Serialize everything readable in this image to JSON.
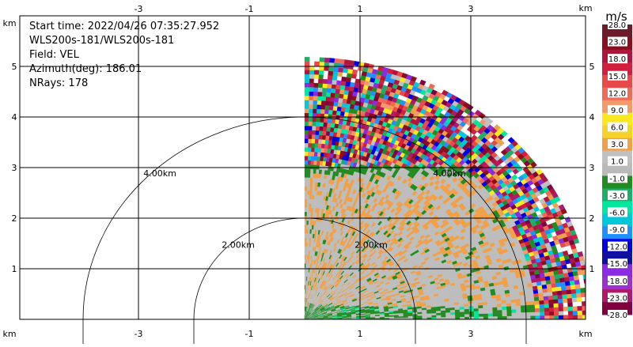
{
  "info": {
    "start_time": "Start time: 2022/04/26 07:35:27.952",
    "instrument": "WLS200s-181/WLS200s-181",
    "field": "Field: VEL",
    "azimuth": "Azimuth(deg): 186.01",
    "nrays": "NRays: 178"
  },
  "chart_data": {
    "type": "heatmap",
    "subtype": "radar-ppi-sector",
    "x_unit": "km",
    "y_unit": "km",
    "xlim": [
      -4.0,
      4.2
    ],
    "ylim": [
      0,
      5.6
    ],
    "x_ticks": [
      -3,
      -1,
      1,
      3
    ],
    "y_ticks": [
      1,
      2,
      3,
      4,
      5
    ],
    "range_rings": [
      {
        "radius_km": 2.0,
        "label": "2.00km"
      },
      {
        "radius_km": 4.0,
        "label": "4.00km"
      }
    ],
    "sector_deg": [
      0,
      90
    ],
    "max_range_km": 5.1,
    "grid": true,
    "colorbar": {
      "unit": "m/s",
      "labels": [
        "28.0",
        "23.0",
        "18.0",
        "15.0",
        "12.0",
        "9.0",
        "6.0",
        "3.0",
        "1.0",
        "-1.0",
        "-3.0",
        "-6.0",
        "-9.0",
        "-12.0",
        "-15.0",
        "-18.0",
        "-23.0",
        "-28.0"
      ],
      "colors": [
        "#6b1b2a",
        "#8c0d1e",
        "#b0163c",
        "#d11f3c",
        "#e84a4a",
        "#f06a5a",
        "#f49a6a",
        "#fbe820",
        "#f5d328",
        "#f0a048",
        "#c0c0c0",
        "#bababa",
        "#228b22",
        "#1fae6a",
        "#00e8a0",
        "#00c8d8",
        "#1e90ff",
        "#0000e0",
        "#1010a0",
        "#8a2be2",
        "#9b30d0",
        "#b0186e",
        "#800040"
      ]
    }
  }
}
